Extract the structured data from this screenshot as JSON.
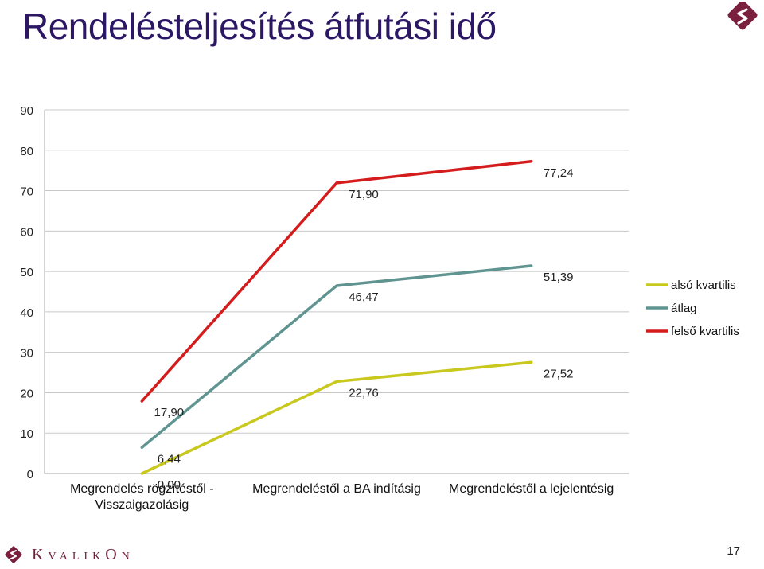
{
  "slide": {
    "title": "Rendelésteljesítés átfutási idő",
    "page_number": "17",
    "brand": {
      "wordmark_big_k": "K",
      "wordmark_rest_a": "VALIK",
      "wordmark_big_o": "O",
      "wordmark_rest_b": "N",
      "color": "#7a1f3d"
    }
  },
  "chart_data": {
    "type": "line",
    "categories": [
      "Megrendelés rögzítéstől -\nVisszaigazolásig",
      "Megrendeléstől a BA indításig",
      "Megrendeléstől a lejelentésig"
    ],
    "series": [
      {
        "name": "alsó kvartilis",
        "color": "#c8c81e",
        "values": [
          0.0,
          22.76,
          27.52
        ],
        "labels": [
          "0,00",
          "22,76",
          "27,52"
        ]
      },
      {
        "name": "átlag",
        "color": "#5f9490",
        "values": [
          6.44,
          46.47,
          51.39
        ],
        "labels": [
          "6,44",
          "46,47",
          "51,39"
        ]
      },
      {
        "name": "felső kvartilis",
        "color": "#d41c1c",
        "values": [
          17.9,
          71.9,
          77.24
        ],
        "labels": [
          "17,90",
          "71,90",
          "77,24"
        ]
      }
    ],
    "ylim": [
      0,
      90
    ],
    "yticks": [
      0,
      10,
      20,
      30,
      40,
      50,
      60,
      70,
      80,
      90
    ],
    "grid": true,
    "legend": "right",
    "title": "",
    "xlabel": "",
    "ylabel": ""
  }
}
